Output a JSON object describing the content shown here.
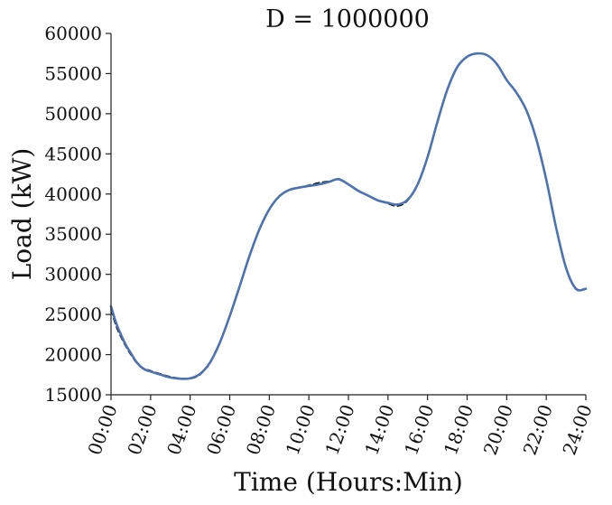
{
  "chart_data": {
    "type": "line",
    "title": "D = 1000000",
    "xlabel": "Time (Hours:Min)",
    "ylabel": "Load (kW)",
    "xlim": [
      0,
      24
    ],
    "ylim": [
      15000,
      60000
    ],
    "grid": false,
    "x_ticks": [
      0,
      2,
      4,
      6,
      8,
      10,
      12,
      14,
      16,
      18,
      20,
      22,
      24
    ],
    "x_tick_labels": [
      "00:00",
      "02:00",
      "04:00",
      "06:00",
      "08:00",
      "10:00",
      "12:00",
      "14:00",
      "16:00",
      "18:00",
      "20:00",
      "22:00",
      "24:00"
    ],
    "y_ticks": [
      15000,
      20000,
      25000,
      30000,
      35000,
      40000,
      45000,
      50000,
      55000,
      60000
    ],
    "y_tick_labels": [
      "15000",
      "20000",
      "25000",
      "30000",
      "35000",
      "40000",
      "45000",
      "50000",
      "55000",
      "60000"
    ],
    "series": [
      {
        "style": "solid",
        "color": "#4c72b0",
        "x": [
          0,
          0.25,
          0.5,
          0.75,
          1,
          1.25,
          1.5,
          1.75,
          2,
          2.5,
          3,
          3.5,
          4,
          4.5,
          5,
          5.5,
          6,
          6.5,
          7,
          7.5,
          8,
          8.5,
          9,
          9.5,
          10,
          10.5,
          11,
          11.5,
          12,
          12.5,
          13,
          13.5,
          14,
          14.5,
          15,
          15.5,
          16,
          16.5,
          17,
          17.5,
          18,
          18.5,
          19,
          19.5,
          20,
          20.5,
          21,
          21.5,
          22,
          22.5,
          23,
          23.5,
          24
        ],
        "y": [
          26000,
          24000,
          22500,
          21200,
          20200,
          19200,
          18500,
          18100,
          17900,
          17500,
          17150,
          17000,
          17050,
          17600,
          19000,
          21500,
          24800,
          28500,
          32300,
          35600,
          38100,
          39700,
          40500,
          40800,
          41000,
          41200,
          41500,
          41850,
          41200,
          40400,
          39800,
          39200,
          38900,
          38700,
          39300,
          41200,
          44600,
          49000,
          53000,
          55800,
          57100,
          57500,
          57300,
          56200,
          54200,
          52600,
          50400,
          46800,
          41800,
          35800,
          30800,
          28200,
          28200
        ]
      },
      {
        "style": "dashed",
        "color": "#111111",
        "x": [
          0,
          0.25,
          0.5,
          0.75,
          1,
          1.25,
          1.5,
          1.75,
          2,
          2.5,
          3,
          3.5,
          4,
          4.5,
          5,
          5.5,
          6,
          6.5,
          7,
          7.5,
          8,
          8.5,
          9,
          9.5,
          10,
          10.5,
          11,
          11.5,
          12,
          12.5,
          13,
          13.5,
          14,
          14.5,
          15,
          15.5,
          16,
          16.5,
          17,
          17.5,
          18,
          18.5,
          19,
          19.5,
          20,
          20.5,
          21,
          21.5,
          22,
          22.5,
          23,
          23.5,
          24
        ],
        "y": [
          25600,
          23600,
          22200,
          21000,
          20000,
          19100,
          18500,
          18200,
          18000,
          17600,
          17250,
          17050,
          17000,
          17500,
          19000,
          21500,
          24800,
          28500,
          32300,
          35600,
          38100,
          39700,
          40500,
          40800,
          41100,
          41400,
          41600,
          41800,
          41200,
          40400,
          39800,
          39200,
          38800,
          38500,
          39200,
          41200,
          44600,
          49000,
          53000,
          55800,
          57100,
          57500,
          57300,
          56200,
          54200,
          52600,
          50400,
          46800,
          41800,
          35800,
          30800,
          28200,
          28200
        ]
      }
    ]
  }
}
